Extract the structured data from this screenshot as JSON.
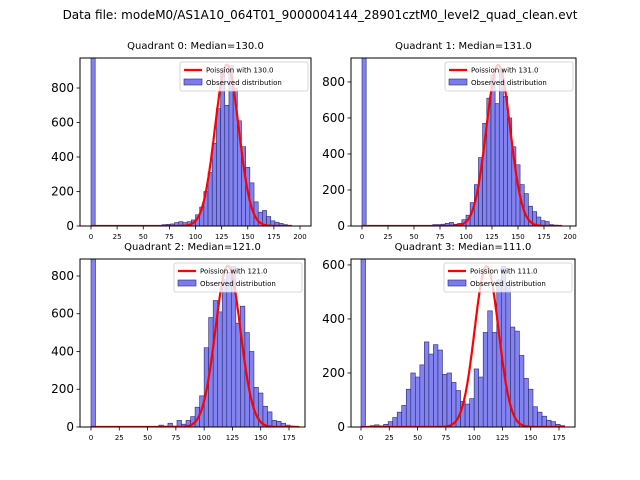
{
  "figure_title": "Data file: modeM0/AS1A10_064T01_9000004144_28901cztM0_level2_quad_clean.evt",
  "colors": {
    "bar_fill": "#7b7bef",
    "bar_edge": "#2a2a6a",
    "poisson_line": "#ff0000"
  },
  "chart_data": [
    {
      "type": "bar",
      "title": "Quadrant 0: Median=130.0",
      "median": 130.0,
      "legend": [
        "Poission with 130.0",
        "Observed distribution"
      ],
      "legend_position": "top-right",
      "xlim": [
        -10,
        210
      ],
      "ylim": [
        0,
        974
      ],
      "xticks": [
        0,
        25,
        50,
        75,
        100,
        125,
        150,
        175,
        200
      ],
      "yticks": [
        0,
        200,
        400,
        600,
        800
      ],
      "bin_width": 4,
      "poisson_peak": 935,
      "bins": [
        [
          0,
          5000
        ],
        [
          68,
          8
        ],
        [
          72,
          10
        ],
        [
          76,
          12
        ],
        [
          80,
          20
        ],
        [
          84,
          25
        ],
        [
          88,
          20
        ],
        [
          92,
          25
        ],
        [
          96,
          35
        ],
        [
          100,
          65
        ],
        [
          104,
          110
        ],
        [
          108,
          200
        ],
        [
          112,
          310
        ],
        [
          116,
          480
        ],
        [
          120,
          680
        ],
        [
          124,
          890
        ],
        [
          128,
          700
        ],
        [
          132,
          930
        ],
        [
          136,
          800
        ],
        [
          140,
          610
        ],
        [
          144,
          460
        ],
        [
          148,
          340
        ],
        [
          152,
          250
        ],
        [
          156,
          140
        ],
        [
          160,
          80
        ],
        [
          164,
          90
        ],
        [
          168,
          55
        ],
        [
          172,
          30
        ],
        [
          176,
          22
        ],
        [
          180,
          15
        ],
        [
          184,
          8
        ],
        [
          188,
          4
        ]
      ]
    },
    {
      "type": "bar",
      "title": "Quadrant 1: Median=131.0",
      "median": 131.0,
      "legend": [
        "Poission with 131.0",
        "Observed distribution"
      ],
      "legend_position": "top-right",
      "xlim": [
        -10,
        205
      ],
      "ylim": [
        0,
        933
      ],
      "xticks": [
        0,
        25,
        50,
        75,
        100,
        125,
        150,
        175,
        200
      ],
      "yticks": [
        0,
        200,
        400,
        600,
        800
      ],
      "bin_width": 4,
      "poisson_peak": 895,
      "bins": [
        [
          0,
          5000
        ],
        [
          68,
          8
        ],
        [
          72,
          8
        ],
        [
          76,
          10
        ],
        [
          80,
          15
        ],
        [
          84,
          20
        ],
        [
          88,
          10
        ],
        [
          92,
          15
        ],
        [
          96,
          35
        ],
        [
          100,
          60
        ],
        [
          104,
          130
        ],
        [
          108,
          230
        ],
        [
          112,
          380
        ],
        [
          116,
          570
        ],
        [
          120,
          710
        ],
        [
          124,
          840
        ],
        [
          128,
          680
        ],
        [
          132,
          870
        ],
        [
          136,
          720
        ],
        [
          140,
          600
        ],
        [
          144,
          440
        ],
        [
          148,
          340
        ],
        [
          152,
          230
        ],
        [
          156,
          180
        ],
        [
          160,
          110
        ],
        [
          164,
          80
        ],
        [
          168,
          50
        ],
        [
          172,
          30
        ],
        [
          176,
          25
        ],
        [
          180,
          8
        ],
        [
          184,
          5
        ],
        [
          188,
          3
        ]
      ]
    },
    {
      "type": "bar",
      "title": "Quadrant 2: Median=121.0",
      "median": 121.0,
      "legend": [
        "Poission with 121.0",
        "Observed distribution"
      ],
      "legend_position": "top-right",
      "xlim": [
        -10,
        193
      ],
      "ylim": [
        0,
        890
      ],
      "xticks": [
        0,
        25,
        50,
        75,
        100,
        125,
        150,
        175
      ],
      "yticks": [
        0,
        200,
        400,
        600,
        800
      ],
      "bin_width": 4,
      "poisson_peak": 855,
      "bins": [
        [
          0,
          5000
        ],
        [
          60,
          10
        ],
        [
          64,
          5
        ],
        [
          68,
          20
        ],
        [
          72,
          5
        ],
        [
          76,
          35
        ],
        [
          80,
          15
        ],
        [
          84,
          35
        ],
        [
          88,
          55
        ],
        [
          92,
          105
        ],
        [
          96,
          165
        ],
        [
          100,
          420
        ],
        [
          104,
          580
        ],
        [
          108,
          670
        ],
        [
          112,
          610
        ],
        [
          116,
          780
        ],
        [
          120,
          820
        ],
        [
          124,
          850
        ],
        [
          128,
          550
        ],
        [
          132,
          640
        ],
        [
          136,
          500
        ],
        [
          140,
          400
        ],
        [
          144,
          210
        ],
        [
          148,
          180
        ],
        [
          152,
          110
        ],
        [
          156,
          80
        ],
        [
          160,
          35
        ],
        [
          164,
          30
        ],
        [
          168,
          20
        ],
        [
          172,
          10
        ],
        [
          176,
          5
        ],
        [
          180,
          3
        ]
      ]
    },
    {
      "type": "bar",
      "title": "Quadrant 3: Median=111.0",
      "median": 111.0,
      "legend": [
        "Poission with 111.0",
        "Observed distribution"
      ],
      "legend_position": "top-right",
      "xlim": [
        -10,
        190
      ],
      "ylim": [
        0,
        622
      ],
      "xticks": [
        0,
        25,
        50,
        75,
        100,
        125,
        150,
        175
      ],
      "yticks": [
        0,
        200,
        400,
        600
      ],
      "bin_width": 4,
      "poisson_peak": 595,
      "bins": [
        [
          0,
          5000
        ],
        [
          8,
          5
        ],
        [
          12,
          8
        ],
        [
          16,
          4
        ],
        [
          20,
          10
        ],
        [
          24,
          20
        ],
        [
          28,
          35
        ],
        [
          32,
          55
        ],
        [
          36,
          80
        ],
        [
          40,
          140
        ],
        [
          44,
          200
        ],
        [
          48,
          185
        ],
        [
          52,
          230
        ],
        [
          56,
          315
        ],
        [
          60,
          270
        ],
        [
          64,
          305
        ],
        [
          68,
          285
        ],
        [
          72,
          195
        ],
        [
          76,
          200
        ],
        [
          80,
          165
        ],
        [
          84,
          135
        ],
        [
          88,
          95
        ],
        [
          92,
          85
        ],
        [
          96,
          105
        ],
        [
          100,
          215
        ],
        [
          104,
          185
        ],
        [
          108,
          350
        ],
        [
          112,
          430
        ],
        [
          116,
          350
        ],
        [
          120,
          545
        ],
        [
          124,
          595
        ],
        [
          128,
          525
        ],
        [
          132,
          370
        ],
        [
          136,
          355
        ],
        [
          140,
          265
        ],
        [
          144,
          180
        ],
        [
          148,
          140
        ],
        [
          152,
          75
        ],
        [
          156,
          55
        ],
        [
          160,
          40
        ],
        [
          164,
          25
        ],
        [
          168,
          20
        ],
        [
          172,
          10
        ],
        [
          176,
          5
        ]
      ]
    }
  ]
}
